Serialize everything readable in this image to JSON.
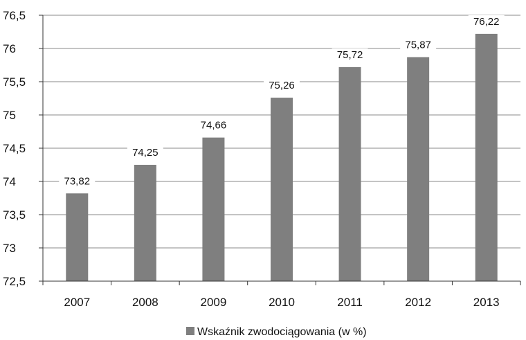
{
  "chart_data": {
    "type": "bar",
    "categories": [
      "2007",
      "2008",
      "2009",
      "2010",
      "2011",
      "2012",
      "2013"
    ],
    "series": [
      {
        "name": "Wskaźnik zwodociągowania (w %)",
        "values": [
          73.82,
          74.25,
          74.66,
          75.26,
          75.72,
          75.87,
          76.22
        ],
        "value_labels": [
          "73,82",
          "74,25",
          "74,66",
          "75,26",
          "75,72",
          "75,87",
          "76,22"
        ],
        "color": "#7f7f7f"
      }
    ],
    "ylim": [
      72.5,
      76.5
    ],
    "y_ticks": [
      72.5,
      73,
      73.5,
      74,
      74.5,
      75,
      75.5,
      76,
      76.5
    ],
    "y_tick_labels": [
      "72,5",
      "73",
      "73,5",
      "74",
      "74,5",
      "75",
      "75,5",
      "76",
      "76,5"
    ],
    "grid": true,
    "legend_position": "bottom-center",
    "colors": {
      "bar": "#7f7f7f",
      "grid": "#888888",
      "axis": "#333333",
      "text": "#111111"
    }
  }
}
